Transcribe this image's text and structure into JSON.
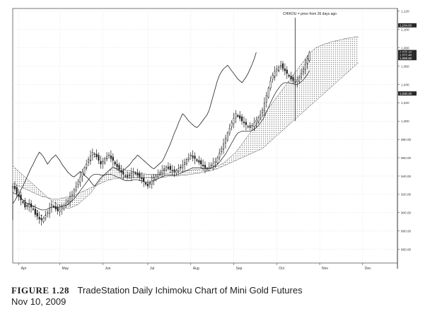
{
  "caption": {
    "figure_label": "FIGURE 1.28",
    "title": "TradeStation Daily Ichimoku Chart of Mini Gold Futures",
    "date": "Nov 10, 2009"
  },
  "chart_data": {
    "type": "candlestick",
    "annotation": "CHIKOU = price from 26 days ago",
    "y_axis": {
      "side": "right",
      "ylim": [
        845,
        1123
      ],
      "ticks": [
        860,
        880,
        900,
        920,
        940,
        960,
        980,
        1000,
        1020,
        1040,
        1060,
        1080,
        1100,
        1120
      ],
      "tick_labels": [
        "860.00",
        "880.00",
        "900.00",
        "920.00",
        "940.00",
        "960.00",
        "980.00",
        "1,000",
        "1,020",
        "1,040",
        "1,060",
        "1,080",
        "1,100",
        "1,120"
      ]
    },
    "x_axis": {
      "months": [
        "Apr",
        "May",
        "Jun",
        "Jul",
        "Aug",
        "Sep",
        "Oct",
        "Nov",
        "Dec"
      ],
      "month_start_index": [
        3,
        23,
        44,
        66,
        87,
        108,
        129,
        150,
        171
      ],
      "xlim": [
        0,
        188
      ]
    },
    "price_tags": [
      {
        "label": "1,104.60",
        "value": 1104.6,
        "style": "dark"
      },
      {
        "label": "1,075.40",
        "value": 1075.4,
        "style": "dark"
      },
      {
        "label": "1,072.40",
        "value": 1072.4,
        "style": "dark"
      },
      {
        "label": "1,068.80",
        "value": 1068.8,
        "style": "dark"
      },
      {
        "label": "1,030.20",
        "value": 1030.2,
        "style": "dark"
      }
    ],
    "grid": true,
    "legend": "none",
    "colors": {
      "candle": "#1a1a1a",
      "cloud": "#8a8a8a",
      "line": "#333333",
      "grid": "#cfcfcf",
      "tag": "#2a2a2a"
    },
    "close": [
      929,
      926,
      921,
      918,
      914,
      911,
      906,
      907,
      909,
      906,
      904,
      898,
      896,
      893,
      892,
      894,
      897,
      900,
      905,
      909,
      907,
      904,
      902,
      903,
      906,
      908,
      910,
      913,
      917,
      920,
      925,
      929,
      934,
      939,
      944,
      949,
      953,
      958,
      962,
      966,
      964,
      961,
      957,
      953,
      956,
      959,
      961,
      963,
      960,
      957,
      953,
      950,
      947,
      944,
      942,
      940,
      939,
      941,
      943,
      945,
      943,
      941,
      939,
      937,
      934,
      931,
      929,
      932,
      935,
      938,
      940,
      942,
      944,
      946,
      948,
      950,
      949,
      947,
      946,
      945,
      946,
      948,
      950,
      952,
      955,
      958,
      960,
      963,
      961,
      959,
      957,
      955,
      953,
      951,
      949,
      948,
      950,
      952,
      954,
      956,
      960,
      965,
      970,
      975,
      981,
      987,
      992,
      998,
      1003,
      1008,
      1006,
      1003,
      1000,
      998,
      996,
      994,
      993,
      995,
      998,
      1001,
      1004,
      1007,
      1012,
      1020,
      1028,
      1036,
      1044,
      1050,
      1054,
      1057,
      1059,
      1061,
      1058,
      1055,
      1052,
      1049,
      1046,
      1044,
      1042,
      1045,
      1048,
      1052,
      1057,
      1062,
      1068,
      1075
    ],
    "tenkan": [
      928,
      927,
      925,
      922,
      919,
      916,
      913,
      911,
      910,
      909,
      907,
      905,
      902,
      899,
      897,
      896,
      897,
      899,
      902,
      905,
      906,
      905,
      904,
      904,
      905,
      906,
      908,
      911,
      914,
      918,
      922,
      926,
      931,
      936,
      941,
      945,
      949,
      953,
      957,
      960,
      961,
      960,
      958,
      956,
      956,
      957,
      959,
      960,
      959,
      957,
      955,
      952,
      949,
      946,
      944,
      942,
      941,
      941,
      942,
      943,
      943,
      942,
      940,
      938,
      936,
      933,
      931,
      931,
      933,
      936,
      938,
      940,
      942,
      944,
      946,
      948,
      948,
      947,
      946,
      946,
      946,
      947,
      949,
      951,
      953,
      956,
      958,
      960,
      960,
      959,
      958,
      956,
      954,
      952,
      950,
      949,
      949,
      951,
      953,
      955,
      958,
      962,
      967,
      972,
      977,
      983,
      988,
      994,
      999,
      1004,
      1005,
      1004,
      1002,
      1000,
      998,
      996,
      995,
      995,
      997,
      999,
      1002,
      1005,
      1009,
      1015,
      1022,
      1030,
      1037,
      1043,
      1048,
      1052,
      1055,
      1057,
      1057,
      1055,
      1053,
      1051,
      1049,
      1047,
      1045,
      1045,
      1047,
      1050,
      1054,
      1058,
      1063,
      1069
    ],
    "kijun": [
      922,
      921,
      920,
      918,
      916,
      914,
      912,
      910,
      909,
      908,
      907,
      906,
      905,
      904,
      903,
      903,
      903,
      904,
      905,
      906,
      906,
      906,
      906,
      906,
      907,
      907,
      908,
      909,
      911,
      913,
      915,
      918,
      921,
      924,
      927,
      930,
      933,
      936,
      939,
      941,
      942,
      942,
      942,
      941,
      941,
      941,
      942,
      942,
      942,
      941,
      940,
      939,
      938,
      937,
      936,
      935,
      935,
      935,
      935,
      936,
      936,
      936,
      935,
      935,
      934,
      933,
      933,
      933,
      934,
      935,
      936,
      937,
      938,
      939,
      940,
      941,
      941,
      941,
      941,
      941,
      941,
      942,
      943,
      944,
      945,
      946,
      947,
      948,
      949,
      949,
      949,
      949,
      949,
      948,
      948,
      948,
      948,
      949,
      950,
      951,
      953,
      955,
      958,
      961,
      964,
      968,
      972,
      976,
      980,
      984,
      987,
      988,
      989,
      989,
      989,
      989,
      989,
      990,
      991,
      993,
      995,
      998,
      1001,
      1005,
      1010,
      1015,
      1020,
      1025,
      1029,
      1033,
      1036,
      1039,
      1041,
      1042,
      1042,
      1042,
      1041,
      1041,
      1040,
      1040,
      1041,
      1043,
      1045,
      1048,
      1051,
      1055
    ],
    "senkou_a": [
      951,
      949,
      947,
      945,
      943,
      941,
      939,
      937,
      935,
      933,
      931,
      929,
      927,
      925,
      923,
      921,
      919,
      917,
      915,
      913,
      911,
      910,
      909,
      908,
      907,
      906,
      905,
      905,
      905,
      906,
      907,
      908,
      909,
      911,
      913,
      915,
      917,
      919,
      921,
      924,
      927,
      930,
      933,
      936,
      939,
      942,
      944,
      946,
      947,
      948,
      948,
      948,
      948,
      948,
      947,
      947,
      946,
      946,
      945,
      945,
      944,
      944,
      943,
      943,
      943,
      942,
      942,
      942,
      942,
      942,
      942,
      942,
      942,
      942,
      943,
      943,
      943,
      944,
      944,
      944,
      944,
      945,
      945,
      945,
      946,
      946,
      946,
      946,
      947,
      947,
      947,
      947,
      948,
      948,
      948,
      949,
      949,
      949,
      950,
      950,
      951,
      952,
      953,
      954,
      956,
      958,
      960,
      962,
      964,
      966,
      969,
      972,
      975,
      978,
      981,
      984,
      987,
      990,
      993,
      996,
      999,
      1002,
      1005,
      1008,
      1011,
      1014,
      1017,
      1020,
      1023,
      1026,
      1029,
      1032,
      1035,
      1038,
      1041,
      1044,
      1047,
      1050,
      1053,
      1056,
      1059,
      1062,
      1065,
      1068,
      1071,
      1074,
      1076,
      1078,
      1080,
      1081,
      1082,
      1083,
      1084,
      1085,
      1085,
      1086,
      1087,
      1087,
      1088,
      1088,
      1089,
      1089,
      1090,
      1090,
      1091,
      1091,
      1091,
      1092,
      1092,
      1092
    ],
    "senkou_b": [
      932,
      931,
      930,
      929,
      928,
      927,
      926,
      925,
      924,
      923,
      922,
      921,
      920,
      919,
      918,
      917,
      917,
      916,
      916,
      915,
      915,
      915,
      915,
      915,
      916,
      916,
      917,
      917,
      918,
      918,
      919,
      920,
      921,
      922,
      923,
      924,
      925,
      926,
      927,
      928,
      929,
      930,
      931,
      932,
      933,
      934,
      935,
      936,
      936,
      937,
      937,
      937,
      938,
      938,
      938,
      938,
      938,
      938,
      938,
      938,
      938,
      938,
      938,
      938,
      938,
      938,
      938,
      938,
      938,
      938,
      939,
      939,
      939,
      939,
      939,
      939,
      940,
      940,
      940,
      940,
      940,
      940,
      941,
      941,
      941,
      941,
      942,
      942,
      942,
      943,
      943,
      943,
      944,
      944,
      945,
      945,
      946,
      946,
      947,
      947,
      948,
      949,
      950,
      951,
      952,
      953,
      954,
      955,
      956,
      957,
      958,
      959,
      960,
      961,
      962,
      963,
      964,
      965,
      966,
      967,
      968,
      969,
      970,
      972,
      974,
      976,
      978,
      980,
      982,
      984,
      986,
      988,
      990,
      992,
      994,
      996,
      998,
      1000,
      1002,
      1004,
      1006,
      1008,
      1010,
      1012,
      1014,
      1016,
      1018,
      1020,
      1022,
      1024,
      1026,
      1028,
      1030,
      1032,
      1034,
      1036,
      1038,
      1040,
      1042,
      1044,
      1046,
      1048,
      1050,
      1052,
      1054,
      1056,
      1058,
      1060,
      1062,
      1064
    ]
  }
}
